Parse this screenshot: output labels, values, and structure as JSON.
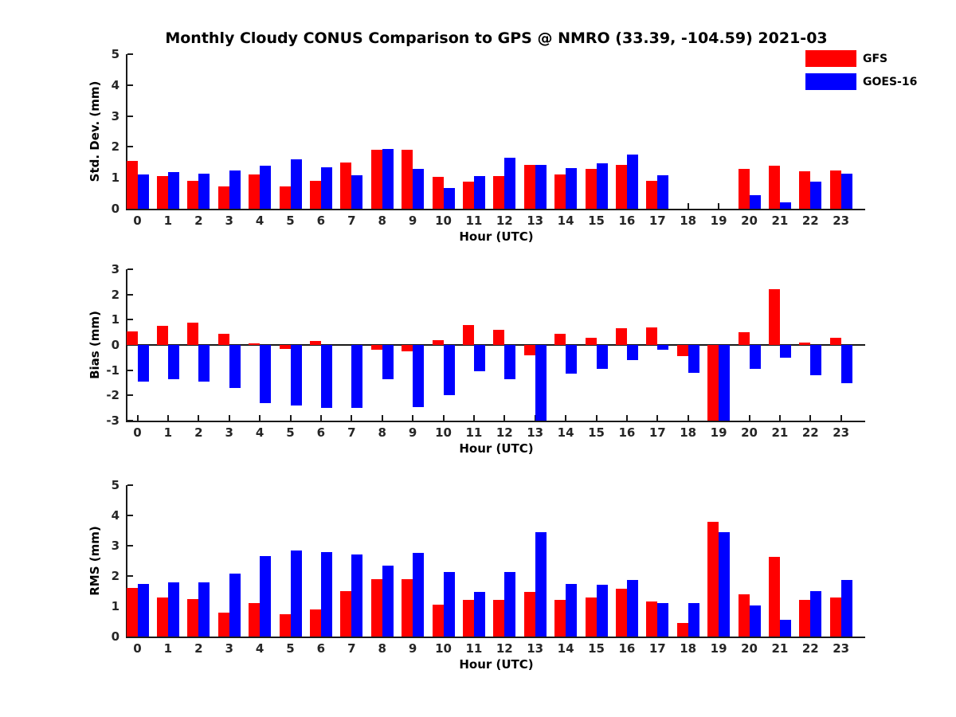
{
  "title": "Monthly Cloudy CONUS Comparison to GPS @ NMRO (33.39, -104.59) 2021-03",
  "legend": {
    "position": "top-right",
    "items": [
      {
        "label": "GFS",
        "color": "#ff0000"
      },
      {
        "label": "GOES-16",
        "color": "#0000ff"
      }
    ]
  },
  "colors": {
    "gfs": "#ff0000",
    "goes16": "#0000ff",
    "axis": "#1a1a1a",
    "tick_label": "#262626",
    "text": "#000000",
    "background": "#ffffff"
  },
  "chart_data": [
    {
      "type": "bar",
      "title": "",
      "ylabel": "Std. Dev. (mm)",
      "xlabel": "Hour (UTC)",
      "categories": [
        "0",
        "1",
        "2",
        "3",
        "4",
        "5",
        "6",
        "7",
        "8",
        "9",
        "10",
        "11",
        "12",
        "13",
        "14",
        "15",
        "16",
        "17",
        "18",
        "19",
        "20",
        "21",
        "22",
        "23"
      ],
      "ylim": [
        0,
        5
      ],
      "yticks": [
        0,
        1,
        2,
        3,
        4,
        5
      ],
      "grid": false,
      "series": [
        {
          "name": "GFS",
          "color": "#ff0000",
          "values": [
            1.55,
            1.05,
            0.9,
            0.73,
            1.1,
            0.73,
            0.9,
            1.5,
            1.9,
            1.9,
            1.03,
            0.88,
            1.05,
            1.43,
            1.12,
            1.28,
            1.42,
            0.9,
            null,
            null,
            1.3,
            1.4,
            1.2,
            1.25
          ]
        },
        {
          "name": "GOES-16",
          "color": "#0000ff",
          "values": [
            1.12,
            1.19,
            1.14,
            1.25,
            1.4,
            1.6,
            1.35,
            1.07,
            1.93,
            1.3,
            0.67,
            1.05,
            1.65,
            1.43,
            1.32,
            1.47,
            1.75,
            1.08,
            null,
            null,
            0.45,
            0.2,
            0.87,
            1.13
          ]
        }
      ]
    },
    {
      "type": "bar",
      "title": "",
      "ylabel": "Bias (mm)",
      "xlabel": "Hour (UTC)",
      "categories": [
        "0",
        "1",
        "2",
        "3",
        "4",
        "5",
        "6",
        "7",
        "8",
        "9",
        "10",
        "11",
        "12",
        "13",
        "14",
        "15",
        "16",
        "17",
        "18",
        "19",
        "20",
        "21",
        "22",
        "23"
      ],
      "ylim": [
        -3,
        3
      ],
      "yticks": [
        -3,
        -2,
        -1,
        0,
        1,
        2,
        3
      ],
      "grid": false,
      "note": "bars reaching -3 are clipped at the axis limit",
      "series": [
        {
          "name": "GFS",
          "color": "#ff0000",
          "values": [
            0.55,
            0.75,
            0.9,
            0.45,
            0.05,
            -0.15,
            0.15,
            0,
            -0.2,
            -0.25,
            0.2,
            0.8,
            0.6,
            -0.4,
            0.45,
            0.28,
            0.65,
            0.68,
            -0.45,
            -3,
            0.5,
            2.2,
            0.1,
            0.3
          ]
        },
        {
          "name": "GOES-16",
          "color": "#0000ff",
          "values": [
            -1.45,
            -1.35,
            -1.45,
            -1.7,
            -2.3,
            -2.4,
            -2.5,
            -2.5,
            -1.35,
            -2.45,
            -2.0,
            -1.05,
            -1.35,
            -3,
            -1.15,
            -0.95,
            -0.6,
            -0.2,
            -1.1,
            -3,
            -0.95,
            -0.5,
            -1.2,
            -1.5
          ]
        }
      ]
    },
    {
      "type": "bar",
      "title": "",
      "ylabel": "RMS (mm)",
      "xlabel": "Hour (UTC)",
      "categories": [
        "0",
        "1",
        "2",
        "3",
        "4",
        "5",
        "6",
        "7",
        "8",
        "9",
        "10",
        "11",
        "12",
        "13",
        "14",
        "15",
        "16",
        "17",
        "18",
        "19",
        "20",
        "21",
        "22",
        "23"
      ],
      "ylim": [
        0,
        5
      ],
      "yticks": [
        0,
        1,
        2,
        3,
        4,
        5
      ],
      "grid": false,
      "series": [
        {
          "name": "GFS",
          "color": "#ff0000",
          "values": [
            1.6,
            1.3,
            1.25,
            0.8,
            1.1,
            0.75,
            0.9,
            1.5,
            1.9,
            1.9,
            1.05,
            1.2,
            1.22,
            1.48,
            1.2,
            1.3,
            1.57,
            1.15,
            0.45,
            3.8,
            1.4,
            2.63,
            1.2,
            1.28
          ]
        },
        {
          "name": "GOES-16",
          "color": "#0000ff",
          "values": [
            1.75,
            1.78,
            1.8,
            2.07,
            2.65,
            2.85,
            2.8,
            2.7,
            2.33,
            2.77,
            2.12,
            1.48,
            2.12,
            3.45,
            1.75,
            1.72,
            1.88,
            1.1,
            1.1,
            3.45,
            1.02,
            0.55,
            1.5,
            1.88
          ]
        }
      ]
    }
  ]
}
